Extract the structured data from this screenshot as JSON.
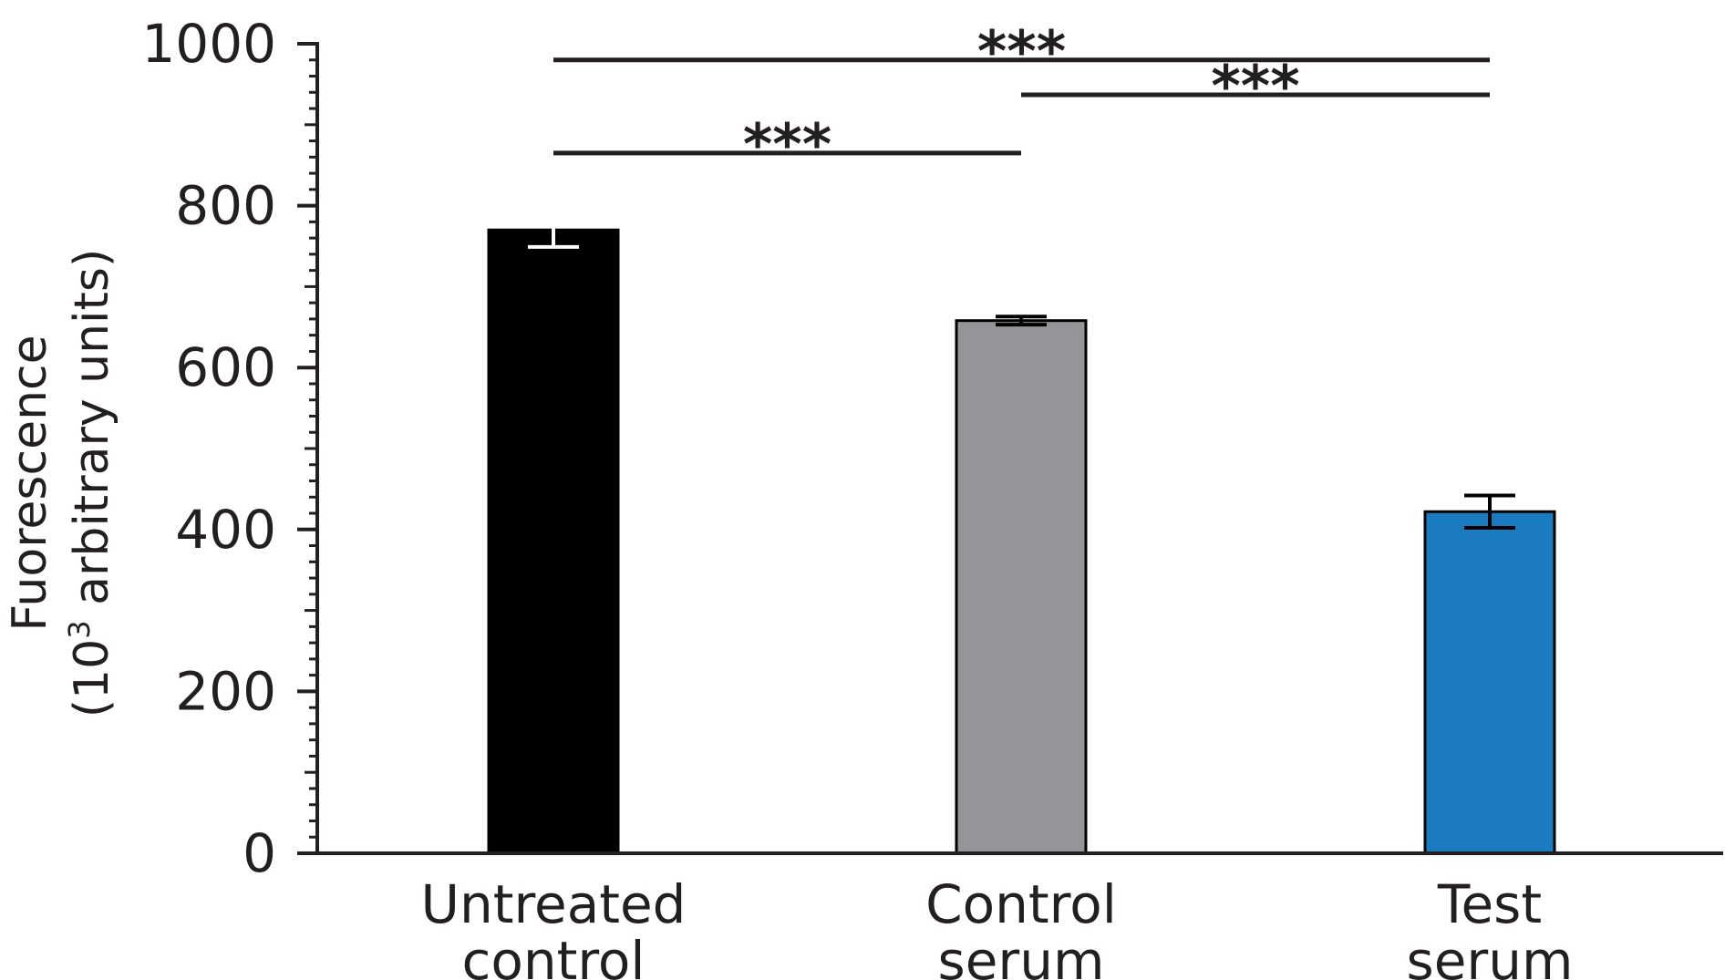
{
  "chart_data": {
    "type": "bar",
    "categories": [
      [
        "Untreated",
        "control"
      ],
      [
        "Control",
        "serum"
      ],
      [
        "Test",
        "serum"
      ]
    ],
    "values": [
      770,
      658,
      422
    ],
    "errors": [
      21,
      5,
      20
    ],
    "bar_colors": [
      "#000000",
      "#939598",
      "#1a7bc1"
    ],
    "error_bar_colors": [
      "#ffffff",
      "#000000",
      "#000000"
    ],
    "ylabel": {
      "line1": "Fuorescence",
      "line2_prefix": "(10",
      "line2_sup": "3",
      "line2_suffix": " arbitrary units)"
    },
    "ylim": [
      0,
      1000
    ],
    "yticks": [
      0,
      200,
      400,
      600,
      800,
      1000
    ],
    "minor_tick_step": 20,
    "mid_tick_step": 100,
    "significance": [
      {
        "from": 0,
        "to": 2,
        "y": 980,
        "label": "***"
      },
      {
        "from": 1,
        "to": 2,
        "y": 937,
        "label": "***"
      },
      {
        "from": 0,
        "to": 1,
        "y": 865,
        "label": "***"
      }
    ],
    "axis_color": "#231f20",
    "grid": false,
    "legend": "none"
  }
}
